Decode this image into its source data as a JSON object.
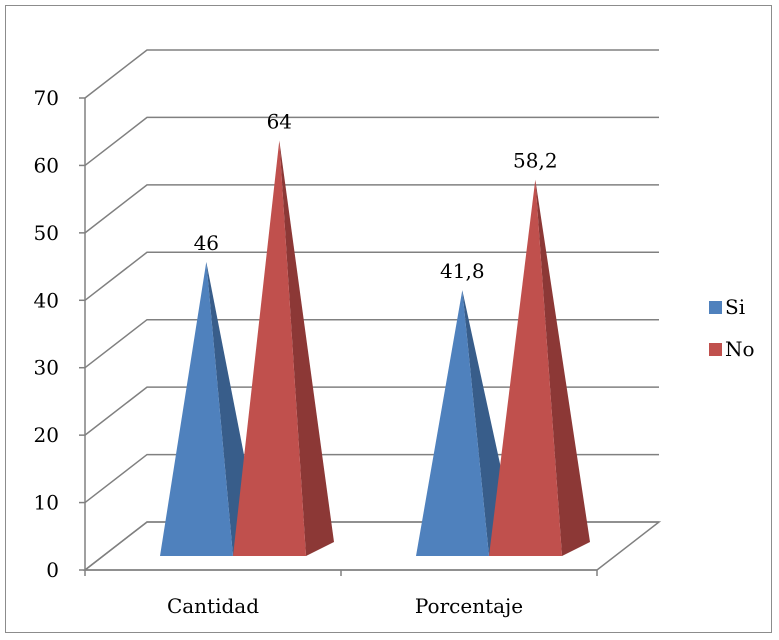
{
  "chart_data": {
    "type": "bar",
    "subtype": "3d-pyramid",
    "categories": [
      "Cantidad",
      "Porcentaje"
    ],
    "series": [
      {
        "name": "Si",
        "values": [
          46,
          41.8
        ],
        "labels": [
          "46",
          "41,8"
        ],
        "color": "#4f81bd",
        "shade": "#385d8a"
      },
      {
        "name": "No",
        "values": [
          64,
          58.2
        ],
        "labels": [
          "64",
          "58,2"
        ],
        "color": "#c0504d",
        "shade": "#8c3836"
      }
    ],
    "yticks": [
      "0",
      "10",
      "20",
      "30",
      "40",
      "50",
      "60",
      "70"
    ],
    "ylim": [
      0,
      70
    ],
    "grid": true,
    "legend_position": "right"
  }
}
